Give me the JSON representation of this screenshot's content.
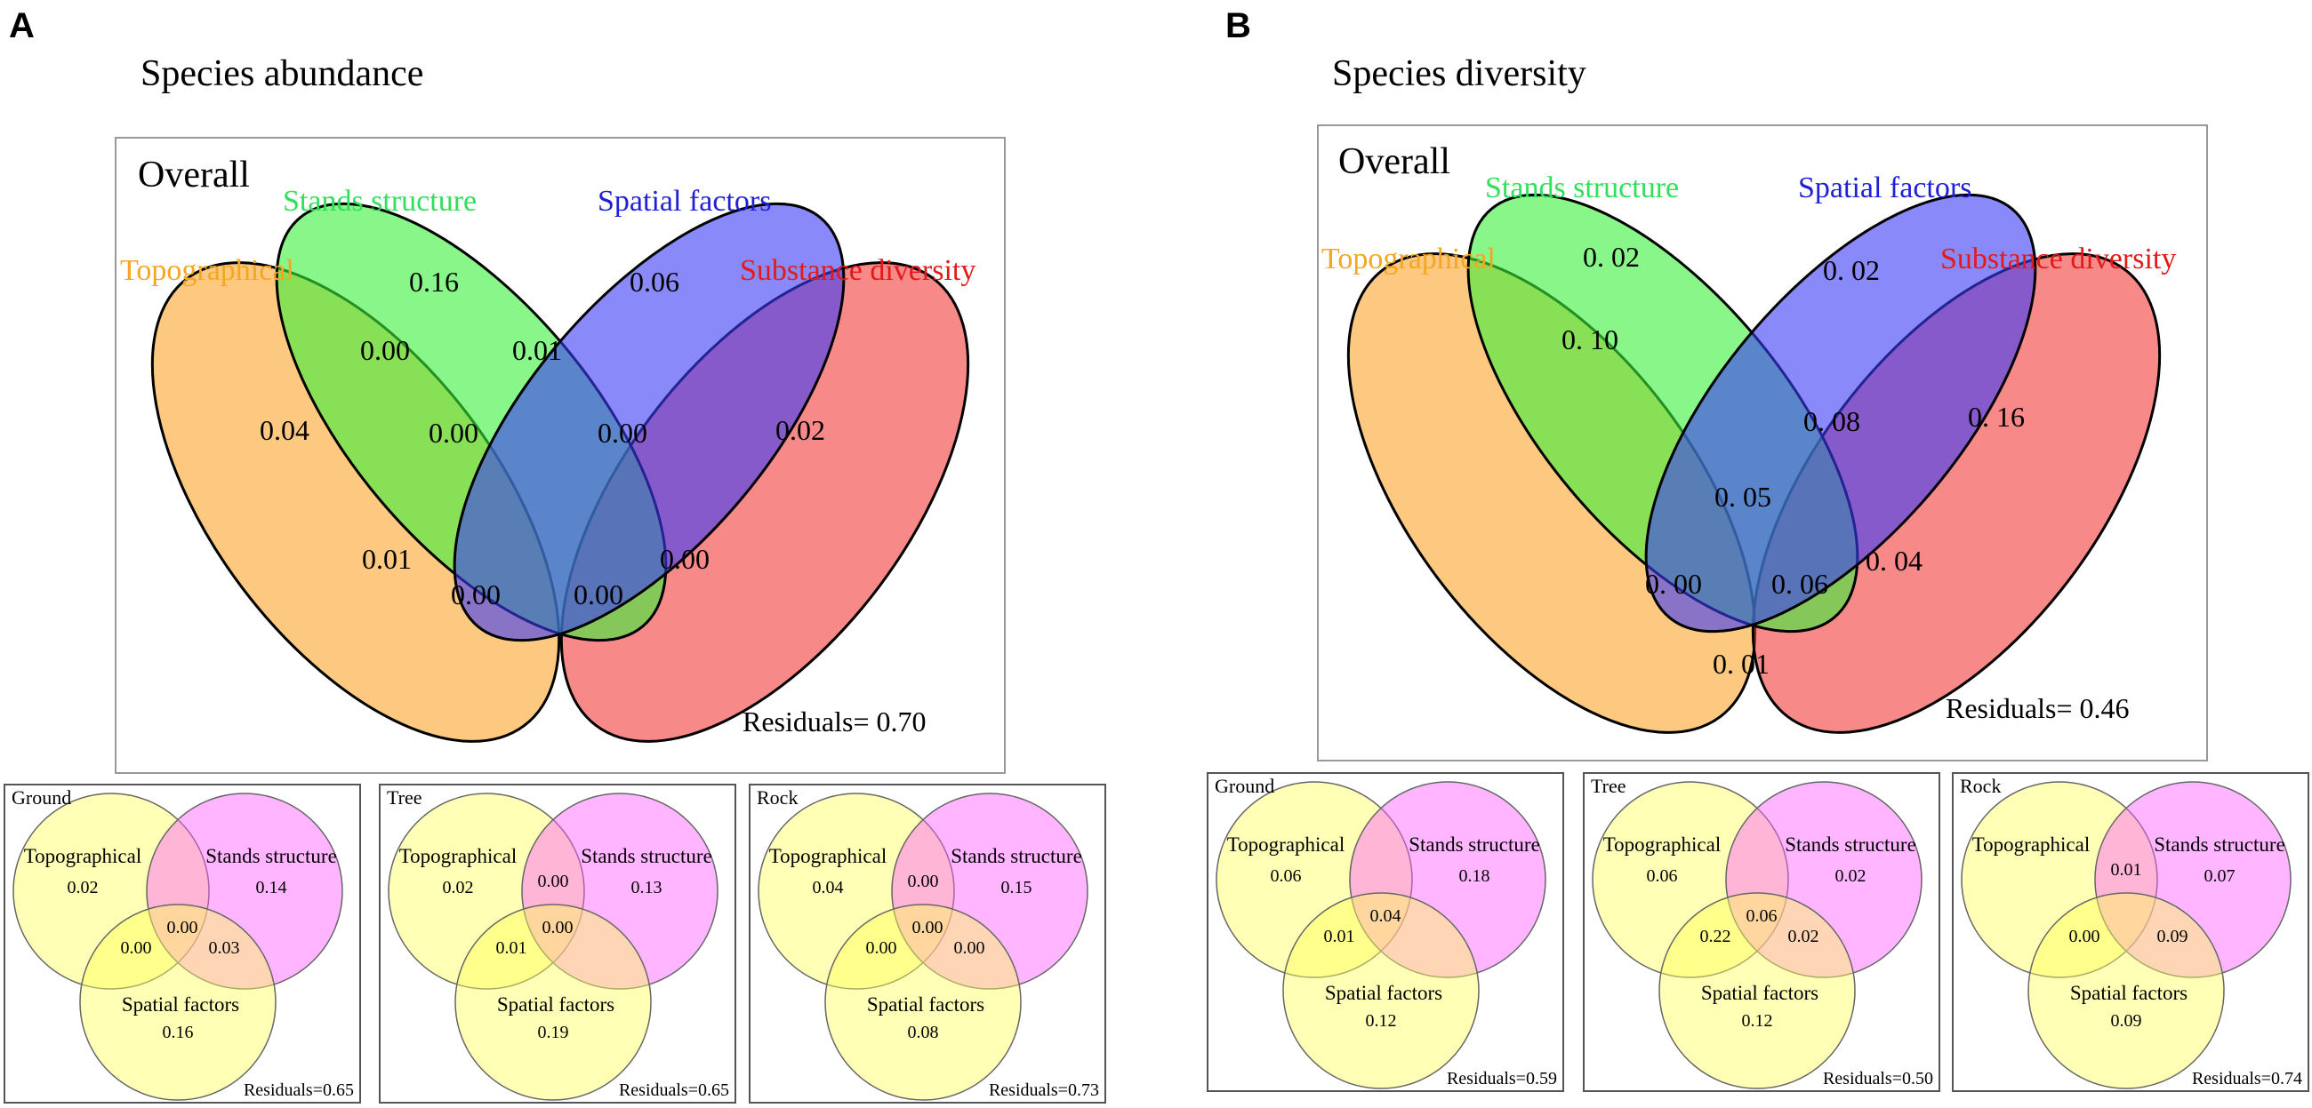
{
  "figure": {
    "panels": [
      {
        "letter": "A",
        "title": "Species abundance",
        "overall": {
          "label": "Overall",
          "sets": {
            "topo": "Topographical",
            "stands": "Stands structure",
            "spatial": "Spatial factors",
            "subst": "Substance diversity"
          },
          "values": {
            "topo_only": "0.04",
            "stands_only": "0.16",
            "spatial_only": "0.06",
            "subst_only": "0.02",
            "topo_stands": "0.00",
            "stands_spatial": "0.01",
            "topo_stands_spatial": "0.00",
            "stands_spatial_subst": "0.00",
            "topo_spatial": "0.01",
            "topo_spatial_subst": "0.00",
            "topo_stands_subst": "0.00",
            "stands_subst": "0.00"
          },
          "residuals": "Residuals= 0.70"
        },
        "subs": [
          {
            "label": "Ground",
            "topo": "Topographical",
            "stands": "Stands structure",
            "spatial": "Spatial factors",
            "topo_only": "0.02",
            "stands_only": "0.14",
            "spatial_only": "0.16",
            "topo_stands": "",
            "topo_spatial": "0.00",
            "stands_spatial": "0.03",
            "center": "0.00",
            "residuals": "Residuals=0.65"
          },
          {
            "label": "Tree",
            "topo": "Topographical",
            "stands": "Stands structure",
            "spatial": "Spatial factors",
            "topo_only": "0.02",
            "stands_only": "0.13",
            "spatial_only": "0.19",
            "topo_stands": "0.00",
            "topo_spatial": "0.01",
            "stands_spatial": "",
            "center": "0.00",
            "residuals": "Residuals=0.65"
          },
          {
            "label": "Rock",
            "topo": "Topographical",
            "stands": "Stands structure",
            "spatial": "Spatial factors",
            "topo_only": "0.04",
            "stands_only": "0.15",
            "spatial_only": "0.08",
            "topo_stands": "0.00",
            "topo_spatial": "0.00",
            "stands_spatial": "0.00",
            "center": "0.00",
            "residuals": "Residuals=0.73"
          }
        ]
      },
      {
        "letter": "B",
        "title": "Species diversity",
        "overall": {
          "label": "Overall",
          "sets": {
            "topo": "Topographical",
            "stands": "Stands structure",
            "spatial": "Spatial factors",
            "subst": "Substance diversity"
          },
          "values": {
            "stands_only": "0. 02",
            "spatial_only": "0. 02",
            "topo_stands": "0. 10",
            "subst_only": "0. 16",
            "stands_spatial_subst": "0. 08",
            "all_four": "0. 05",
            "spatial_subst": "0. 04",
            "topo_spatial_subst": "0. 00",
            "topo_stands_subst": "0. 06",
            "topo_subst": "0. 01"
          },
          "residuals": "Residuals= 0.46"
        },
        "subs": [
          {
            "label": "Ground",
            "topo": "Topographical",
            "stands": "Stands structure",
            "spatial": "Spatial factors",
            "topo_only": "0.06",
            "stands_only": "0.18",
            "spatial_only": "0.12",
            "topo_stands": "",
            "topo_spatial": "0.01",
            "stands_spatial": "",
            "center": "0.04",
            "residuals": "Residuals=0.59"
          },
          {
            "label": "Tree",
            "topo": "Topographical",
            "stands": "Stands structure",
            "spatial": "Spatial factors",
            "topo_only": "0.06",
            "stands_only": "0.02",
            "spatial_only": "0.12",
            "topo_stands": "",
            "topo_spatial": "0.22",
            "stands_spatial": "0.02",
            "center": "0.06",
            "residuals": "Residuals=0.50"
          },
          {
            "label": "Rock",
            "topo": "Topographical",
            "stands": "Stands structure",
            "spatial": "Spatial factors",
            "topo_only": "",
            "stands_only": "0.07",
            "spatial_only": "0.09",
            "topo_stands": "0.01",
            "topo_spatial": "0.00",
            "stands_spatial": "0.09",
            "center": "",
            "residuals": "Residuals=0.74"
          }
        ]
      }
    ]
  }
}
